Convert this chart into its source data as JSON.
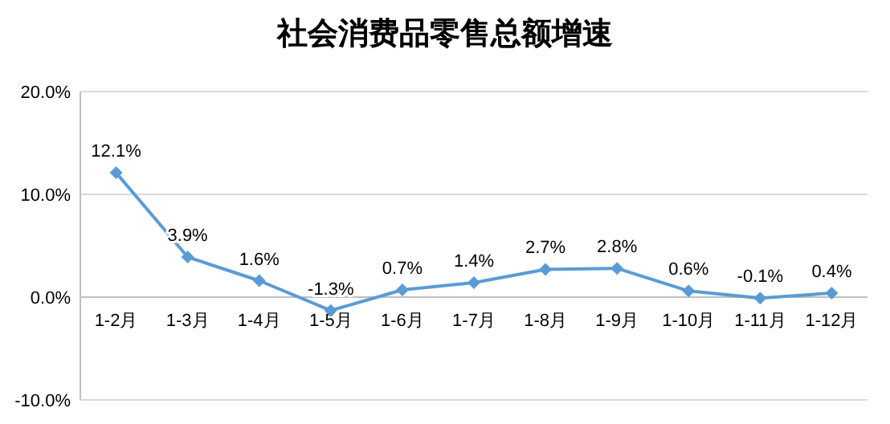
{
  "chart_data": {
    "type": "line",
    "title": "社会消费品零售总额增速",
    "categories": [
      "1-2月",
      "1-3月",
      "1-4月",
      "1-5月",
      "1-6月",
      "1-7月",
      "1-8月",
      "1-9月",
      "1-10月",
      "1-11月",
      "1-12月"
    ],
    "series": [
      {
        "color": "#5b9bd5",
        "values": [
          12.1,
          3.9,
          1.6,
          -1.3,
          0.7,
          1.4,
          2.7,
          2.8,
          0.6,
          -0.1,
          0.4
        ],
        "value_labels": [
          "12.1%",
          "3.9%",
          "1.6%",
          "-1.3%",
          "0.7%",
          "1.4%",
          "2.7%",
          "2.8%",
          "0.6%",
          "-0.1%",
          "0.4%"
        ]
      }
    ],
    "ylim": [
      -10,
      20
    ],
    "yticks": [
      {
        "value": -10,
        "label": "-10.0%"
      },
      {
        "value": 0,
        "label": "0.0%"
      },
      {
        "value": 10,
        "label": "10.0%"
      },
      {
        "value": 20,
        "label": "20.0%"
      }
    ],
    "grid": "y",
    "marker": "diamond",
    "line_style": "solid"
  }
}
